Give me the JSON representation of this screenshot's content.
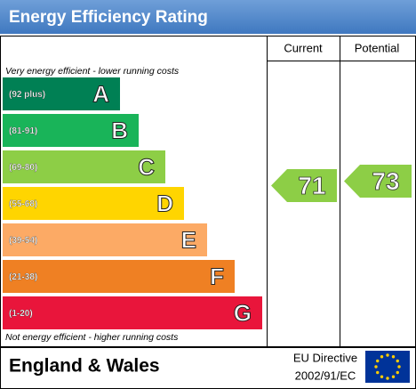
{
  "title": "Energy Efficiency Rating",
  "columns": [
    "Current",
    "Potential"
  ],
  "top_note": "Very energy efficient - lower running costs",
  "bottom_note": "Not energy efficient - higher running costs",
  "bands": [
    {
      "range": "(92 plus)",
      "letter": "A",
      "color": "#008054"
    },
    {
      "range": "(81-91)",
      "letter": "B",
      "color": "#19b459"
    },
    {
      "range": "(69-80)",
      "letter": "C",
      "color": "#8dce46"
    },
    {
      "range": "(55-68)",
      "letter": "D",
      "color": "#ffd500"
    },
    {
      "range": "(39-54)",
      "letter": "E",
      "color": "#fcaa65"
    },
    {
      "range": "(21-38)",
      "letter": "F",
      "color": "#ef8023"
    },
    {
      "range": "(1-20)",
      "letter": "G",
      "color": "#e9153b"
    }
  ],
  "current": 71,
  "potential": 73,
  "footer": {
    "region": "England & Wales",
    "directive": [
      "EU Directive",
      "2002/91/EC"
    ]
  }
}
